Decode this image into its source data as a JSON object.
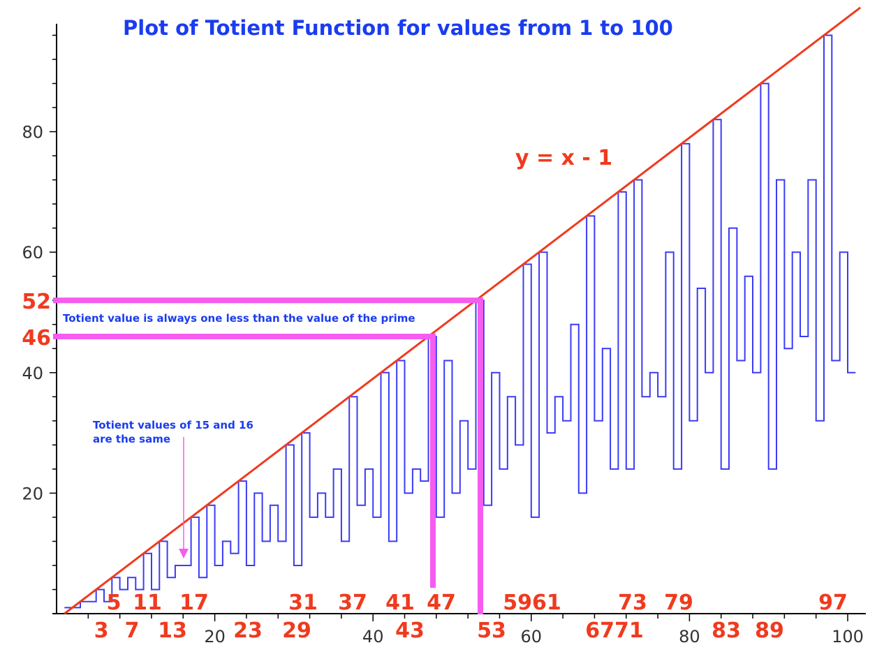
{
  "colors": {
    "step_line": "#3b3bf5",
    "diagonal": "#f03a1e",
    "highlight": "#f55cf0",
    "labels_red": "#f03a1e",
    "title_blue": "#1a3cf0",
    "axis": "#000000",
    "ticks_text": "#333333"
  },
  "chart_data": {
    "type": "line",
    "title": "Plot of Totient Function for values from 1 to 100",
    "xlim": [
      0,
      100
    ],
    "ylim": [
      0,
      100
    ],
    "x_ticks": [
      20,
      40,
      60,
      80,
      100
    ],
    "y_ticks": [
      20,
      40,
      60,
      80
    ],
    "series": [
      {
        "values": [
          1,
          1,
          2,
          2,
          4,
          2,
          6,
          4,
          6,
          4,
          10,
          4,
          12,
          6,
          8,
          8,
          16,
          6,
          18,
          8,
          12,
          10,
          22,
          8,
          20,
          12,
          18,
          12,
          28,
          8,
          30,
          16,
          20,
          16,
          24,
          12,
          36,
          18,
          24,
          16,
          40,
          12,
          42,
          20,
          24,
          22,
          46,
          16,
          42,
          20,
          32,
          24,
          52,
          18,
          40,
          24,
          36,
          28,
          58,
          16,
          60,
          30,
          36,
          32,
          48,
          20,
          66,
          32,
          44,
          24,
          70,
          24,
          72,
          36,
          40,
          36,
          60,
          24,
          78,
          32,
          54,
          40,
          82,
          24,
          64,
          42,
          56,
          40,
          88,
          24,
          72,
          44,
          60,
          46,
          72,
          32,
          96,
          42,
          60,
          40
        ]
      }
    ],
    "reference_line": {
      "label": "y = x - 1",
      "slope": 1,
      "intercept": -1
    },
    "prime_labels_upper": [
      5,
      11,
      17,
      31,
      37,
      41,
      47,
      59,
      61,
      73,
      79,
      97
    ],
    "prime_labels_lower": [
      3,
      7,
      13,
      23,
      29,
      43,
      53,
      67,
      71,
      83,
      89
    ],
    "upper_text": [
      "5",
      "11",
      "17",
      "31",
      "37",
      "41",
      "47",
      "5961",
      "73",
      "79",
      "97"
    ],
    "lower_text": [
      "3",
      "7",
      "13",
      "23",
      "29",
      "43",
      "53",
      "6771",
      "83",
      "89"
    ],
    "highlights": [
      {
        "prime": 47,
        "value": "46"
      },
      {
        "prime": 53,
        "value": "52"
      }
    ],
    "annotations": {
      "prime_note": "Totient value is always one less than the value of the prime",
      "same_note_line1": "Totient values of 15 and 16",
      "same_note_line2": "are the same"
    }
  }
}
